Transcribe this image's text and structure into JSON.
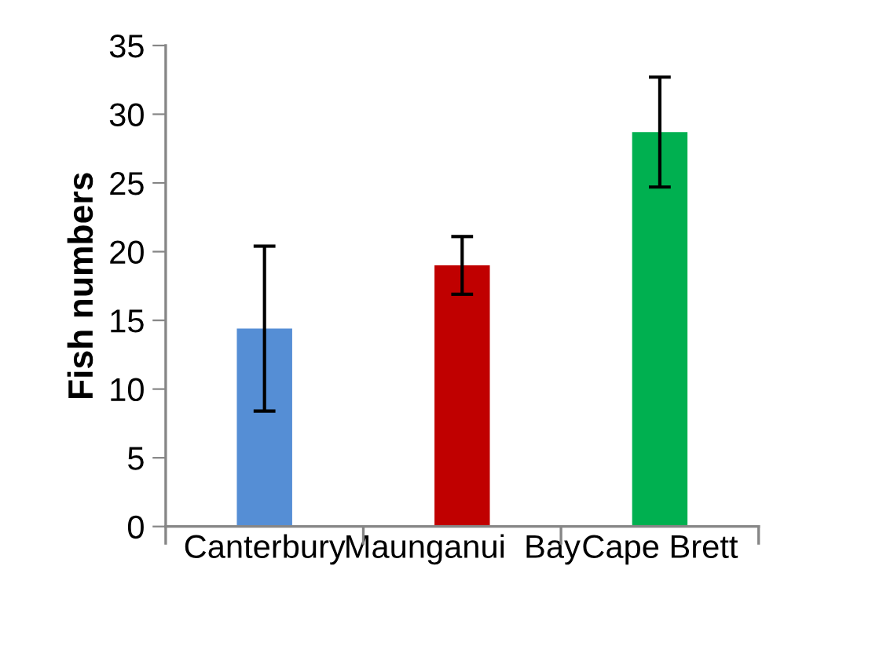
{
  "chart_data": {
    "type": "bar",
    "ylabel": "Fish numbers",
    "categories": [
      "Canterbury",
      "Maunganui  Bay",
      "Cape Brett"
    ],
    "values": [
      14.4,
      19.0,
      28.7
    ],
    "colors": [
      "#558ed5",
      "#c00000",
      "#00b050"
    ],
    "errors": [
      6.0,
      2.1,
      4.0
    ],
    "ylim": [
      0,
      35
    ],
    "yticks": [
      0,
      5,
      10,
      15,
      20,
      25,
      30,
      35
    ],
    "grid": false,
    "legend": false
  }
}
